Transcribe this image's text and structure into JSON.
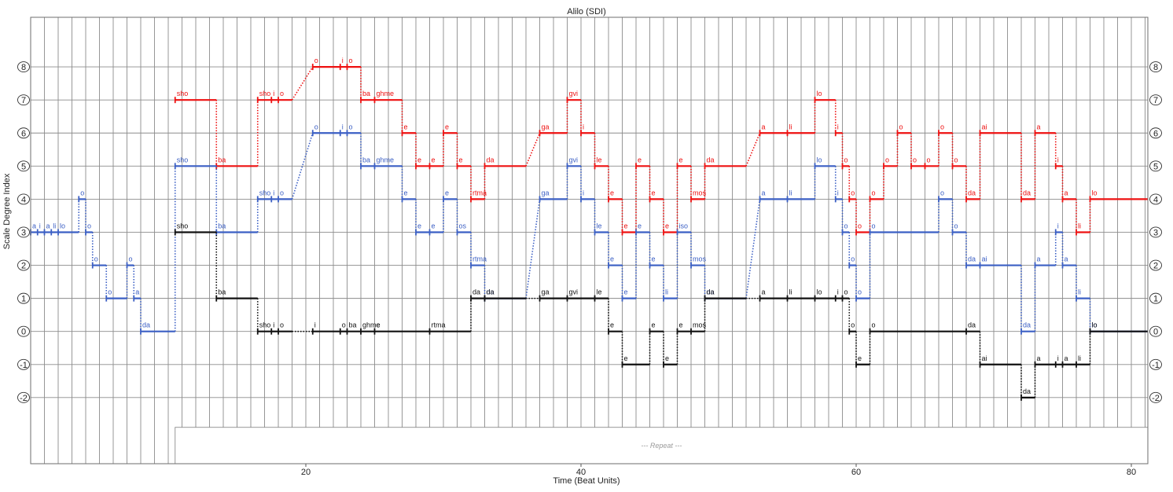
{
  "chart_data": {
    "type": "line",
    "title": "Alilo (SDI)",
    "xlabel": "Time (Beat Units)",
    "ylabel": "Scale Degree Index",
    "xlim": [
      0,
      81.2
    ],
    "ylim": [
      -4.0,
      9.5
    ],
    "x_ticks": [
      20,
      40,
      60,
      80
    ],
    "y_ticks": [
      -2,
      -1,
      0,
      1,
      2,
      3,
      4,
      5,
      6,
      7,
      8
    ],
    "y_tick_labels": [
      "-2",
      "-1",
      "0",
      "1",
      "2",
      "3",
      "4",
      "5",
      "6",
      "7",
      "8"
    ],
    "grid": true,
    "repeat_region": {
      "x": [
        10.5,
        81.2
      ],
      "y_top": -2.9,
      "label": "--- Repeat ---"
    },
    "colors": {
      "top": "#ee1111",
      "middle": "#3b5fc4",
      "bottom": "#111111"
    },
    "series": [
      {
        "key": "top",
        "notes": [
          [
            10.5,
            13.5,
            7,
            "sho"
          ],
          [
            13.5,
            16.5,
            5,
            "ba"
          ],
          [
            16.5,
            17.5,
            7,
            "sho"
          ],
          [
            17.5,
            18,
            7,
            "i"
          ],
          [
            18,
            19,
            7,
            "o"
          ],
          [
            20.5,
            22.5,
            8,
            "o"
          ],
          [
            22.5,
            23,
            8,
            "i"
          ],
          [
            23,
            24,
            8,
            "o"
          ],
          [
            24,
            25,
            7,
            "ba"
          ],
          [
            25,
            27,
            7,
            "ghme"
          ],
          [
            27,
            28,
            6,
            "e"
          ],
          [
            28,
            29,
            5,
            "e"
          ],
          [
            29,
            30,
            5,
            "e"
          ],
          [
            30,
            31,
            6,
            "e"
          ],
          [
            31,
            32,
            5,
            "e"
          ],
          [
            32,
            33,
            4,
            "rtma"
          ],
          [
            33,
            36,
            5,
            "da"
          ],
          [
            37,
            39,
            6,
            "ga"
          ],
          [
            39,
            40,
            7,
            "gvi"
          ],
          [
            40,
            41,
            6,
            "i"
          ],
          [
            41,
            42,
            5,
            "le"
          ],
          [
            42,
            43,
            4,
            "e"
          ],
          [
            43,
            44,
            3,
            "e"
          ],
          [
            44,
            45,
            5,
            "e"
          ],
          [
            45,
            46,
            4,
            "e"
          ],
          [
            46,
            47,
            3,
            "e"
          ],
          [
            47,
            48,
            5,
            "e"
          ],
          [
            48,
            49,
            4,
            "mos"
          ],
          [
            49,
            52,
            5,
            "da"
          ],
          [
            53,
            55,
            6,
            "a"
          ],
          [
            55,
            57,
            6,
            "li"
          ],
          [
            57,
            58.5,
            7,
            "lo"
          ],
          [
            58.5,
            59,
            6,
            "i"
          ],
          [
            59,
            59.5,
            5,
            "o"
          ],
          [
            59.5,
            60,
            4,
            "o"
          ],
          [
            60,
            61,
            3,
            "o"
          ],
          [
            61,
            62,
            4,
            "o"
          ],
          [
            62,
            63,
            5,
            "o"
          ],
          [
            63,
            64,
            6,
            "o"
          ],
          [
            64,
            65,
            5,
            "o"
          ],
          [
            65,
            66,
            5,
            "o"
          ],
          [
            66,
            67,
            6,
            "o"
          ],
          [
            67,
            68,
            5,
            "o"
          ],
          [
            68,
            69,
            4,
            "da"
          ],
          [
            69,
            72,
            6,
            "ai"
          ],
          [
            72,
            73,
            4,
            "da"
          ],
          [
            73,
            74.5,
            6,
            "a"
          ],
          [
            74.5,
            75,
            5,
            "i"
          ],
          [
            75,
            76,
            4,
            "a"
          ],
          [
            76,
            77,
            3,
            "li"
          ],
          [
            77,
            81.2,
            4,
            "lo"
          ]
        ]
      },
      {
        "key": "middle",
        "notes": [
          [
            0,
            0.5,
            3,
            "a"
          ],
          [
            0.5,
            1,
            3,
            "i"
          ],
          [
            1,
            1.5,
            3,
            "a"
          ],
          [
            1.5,
            2,
            3,
            "li"
          ],
          [
            2,
            3.5,
            3,
            "lo"
          ],
          [
            3.5,
            4,
            4,
            "o"
          ],
          [
            4,
            4.5,
            3,
            "o"
          ],
          [
            4.5,
            5.5,
            2,
            "o"
          ],
          [
            5.5,
            7,
            1,
            "o"
          ],
          [
            7,
            7.5,
            2,
            "o"
          ],
          [
            7.5,
            8,
            1,
            "a"
          ],
          [
            8,
            10.5,
            0,
            "da"
          ],
          [
            10.5,
            13.5,
            5,
            "sho"
          ],
          [
            13.5,
            16.5,
            3,
            "ba"
          ],
          [
            16.5,
            17.5,
            4,
            "sho"
          ],
          [
            17.5,
            18,
            4,
            "i"
          ],
          [
            18,
            19,
            4,
            "o"
          ],
          [
            20.5,
            22.5,
            6,
            "o"
          ],
          [
            22.5,
            23,
            6,
            "i"
          ],
          [
            23,
            24,
            6,
            "o"
          ],
          [
            24,
            25,
            5,
            "ba"
          ],
          [
            25,
            27,
            5,
            "ghme"
          ],
          [
            27,
            28,
            4,
            "e"
          ],
          [
            28,
            29,
            3,
            "e"
          ],
          [
            29,
            30,
            3,
            "e"
          ],
          [
            30,
            31,
            4,
            "e"
          ],
          [
            31,
            32,
            3,
            "os"
          ],
          [
            32,
            33,
            2,
            "rtma"
          ],
          [
            33,
            36,
            1,
            "da"
          ],
          [
            37,
            39,
            4,
            "ga"
          ],
          [
            39,
            40,
            5,
            "gvi"
          ],
          [
            40,
            41,
            4,
            "i"
          ],
          [
            41,
            42,
            3,
            "le"
          ],
          [
            42,
            43,
            2,
            "e"
          ],
          [
            43,
            44,
            1,
            "e"
          ],
          [
            44,
            45,
            3,
            "e"
          ],
          [
            45,
            46,
            2,
            "e"
          ],
          [
            46,
            47,
            1,
            "li"
          ],
          [
            47,
            48,
            3,
            "iso"
          ],
          [
            48,
            49,
            2,
            "mos"
          ],
          [
            49,
            52,
            1,
            "da"
          ],
          [
            53,
            55,
            4,
            "a"
          ],
          [
            55,
            57,
            4,
            "li"
          ],
          [
            57,
            58.5,
            5,
            "lo"
          ],
          [
            58.5,
            59,
            4,
            "i"
          ],
          [
            59,
            59.5,
            3,
            "o"
          ],
          [
            59.5,
            60,
            2,
            "o"
          ],
          [
            60,
            61,
            1,
            "o"
          ],
          [
            61,
            66,
            3,
            "o"
          ],
          [
            66,
            67,
            4,
            "o"
          ],
          [
            67,
            68,
            3,
            "o"
          ],
          [
            68,
            69,
            2,
            "da"
          ],
          [
            69,
            72,
            2,
            "ai"
          ],
          [
            72,
            73,
            0,
            "da"
          ],
          [
            73,
            74.5,
            2,
            "a"
          ],
          [
            74.5,
            75,
            3,
            "i"
          ],
          [
            75,
            76,
            2,
            "a"
          ],
          [
            76,
            77,
            1,
            "li"
          ],
          [
            77,
            81.2,
            0,
            "lo"
          ]
        ]
      },
      {
        "key": "bottom",
        "notes": [
          [
            10.5,
            13.5,
            3,
            "sho"
          ],
          [
            13.5,
            16.5,
            1,
            "ba"
          ],
          [
            16.5,
            17.5,
            0,
            "sho"
          ],
          [
            17.5,
            18,
            0,
            "i"
          ],
          [
            18,
            19,
            0,
            "o"
          ],
          [
            20.5,
            22.5,
            0,
            "i"
          ],
          [
            22.5,
            23,
            0,
            "o"
          ],
          [
            23,
            24,
            0,
            "ba"
          ],
          [
            24,
            25,
            0,
            "ghme"
          ],
          [
            25,
            29,
            0,
            "e"
          ],
          [
            29,
            32,
            0,
            "rtma"
          ],
          [
            32,
            33,
            1,
            "da"
          ],
          [
            33,
            36,
            1,
            "da"
          ],
          [
            37,
            39,
            1,
            "ga"
          ],
          [
            39,
            41,
            1,
            "gvi"
          ],
          [
            41,
            42,
            1,
            "le"
          ],
          [
            42,
            43,
            0,
            "e"
          ],
          [
            43,
            45,
            -1,
            "e"
          ],
          [
            45,
            46,
            0,
            "e"
          ],
          [
            46,
            47,
            -1,
            "e"
          ],
          [
            47,
            48,
            0,
            "e"
          ],
          [
            48,
            49,
            0,
            "mos"
          ],
          [
            49,
            52,
            1,
            "da"
          ],
          [
            53,
            55,
            1,
            "a"
          ],
          [
            55,
            57,
            1,
            "li"
          ],
          [
            57,
            58.5,
            1,
            "lo"
          ],
          [
            58.5,
            59,
            1,
            "i"
          ],
          [
            59,
            59.5,
            1,
            "o"
          ],
          [
            59.5,
            60,
            0,
            "o"
          ],
          [
            60,
            61,
            -1,
            "e"
          ],
          [
            61,
            68,
            0,
            "o"
          ],
          [
            68,
            69,
            0,
            "da"
          ],
          [
            69,
            72,
            -1,
            "ai"
          ],
          [
            72,
            73,
            -2,
            "da"
          ],
          [
            73,
            74.5,
            -1,
            "a"
          ],
          [
            74.5,
            75,
            -1,
            "i"
          ],
          [
            75,
            76,
            -1,
            "a"
          ],
          [
            76,
            77,
            -1,
            "li"
          ],
          [
            77,
            81.2,
            0,
            "lo"
          ]
        ]
      }
    ]
  }
}
